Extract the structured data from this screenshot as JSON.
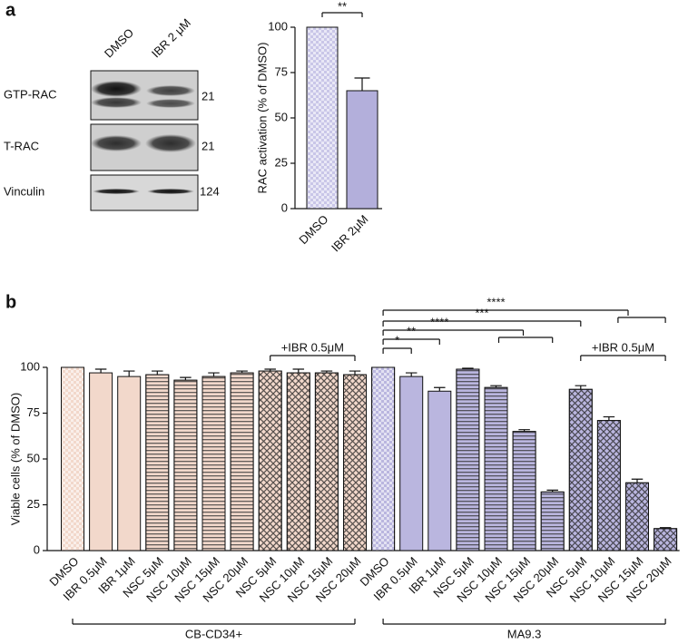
{
  "panels": [
    "a",
    "b"
  ],
  "blot": {
    "columns": [
      "DMSO",
      "IBR 2 μM"
    ],
    "rows": [
      {
        "label": "GTP-RAC",
        "size": "21"
      },
      {
        "label": "T-RAC",
        "size": "21"
      },
      {
        "label": "Vinculin",
        "size": "124"
      }
    ]
  },
  "chart_data": [
    {
      "type": "bar",
      "y_label": "RAC activation (% of DMSO)",
      "categories": [
        "DMSO",
        "IBR 2μM"
      ],
      "values": [
        100,
        65
      ],
      "errors": [
        0,
        7
      ],
      "colors": [
        "#c9c6e8",
        "#b3afdb"
      ],
      "ylim": [
        0,
        100
      ],
      "yticks": [
        0,
        25,
        50,
        75,
        100
      ],
      "annotations": [
        "**"
      ]
    },
    {
      "type": "bar",
      "y_label": "Viable cells (% of DMSO)",
      "categories": [
        "DMSO",
        "IBR 0.5μM",
        "IBR 1μM",
        "NSC 5μM",
        "NSC 10μM",
        "NSC 15μM",
        "NSC 20μM",
        "NSC 5μM",
        "NSC 10μM",
        "NSC 15μM",
        "NSC 20μM",
        "DMSO",
        "IBR 0.5μM",
        "IBR 1μM",
        "NSC 5μM",
        "NSC 10μM",
        "NSC 15μM",
        "NSC 20μM",
        "NSC 5μM",
        "NSC 10μM",
        "NSC 15μM",
        "NSC 20μM"
      ],
      "values": [
        100,
        97,
        95,
        96,
        93,
        95,
        97,
        98,
        97,
        97,
        96,
        100,
        95,
        87,
        99,
        89,
        65,
        32,
        88,
        71,
        37,
        12
      ],
      "errors": [
        0,
        2,
        3,
        2,
        1.5,
        2,
        1,
        1,
        2,
        1,
        2,
        0,
        2,
        2,
        0.5,
        1,
        1,
        1,
        2,
        2,
        2,
        0.5
      ],
      "colors": [
        "#f2d8cb",
        "#f2d8cb",
        "#f2d8cb",
        "#f2d8cb",
        "#f2d8cb",
        "#f2d8cb",
        "#f2d8cb",
        "#f2d8cb",
        "#f2d8cb",
        "#f2d8cb",
        "#f2d8cb",
        "#bab6df",
        "#bab6df",
        "#bab6df",
        "#bab6df",
        "#bab6df",
        "#bab6df",
        "#bab6df",
        "#bab6df",
        "#bab6df",
        "#bab6df",
        "#bab6df"
      ],
      "ylim": [
        0,
        100
      ],
      "yticks": [
        0,
        25,
        50,
        75,
        100
      ],
      "groups": [
        "CB-CD34+",
        "MA9.3"
      ],
      "annotations": [
        "+IBR 0.5μM",
        "+IBR 0.5μM",
        "*",
        "**",
        "****",
        "***",
        "****"
      ]
    }
  ]
}
